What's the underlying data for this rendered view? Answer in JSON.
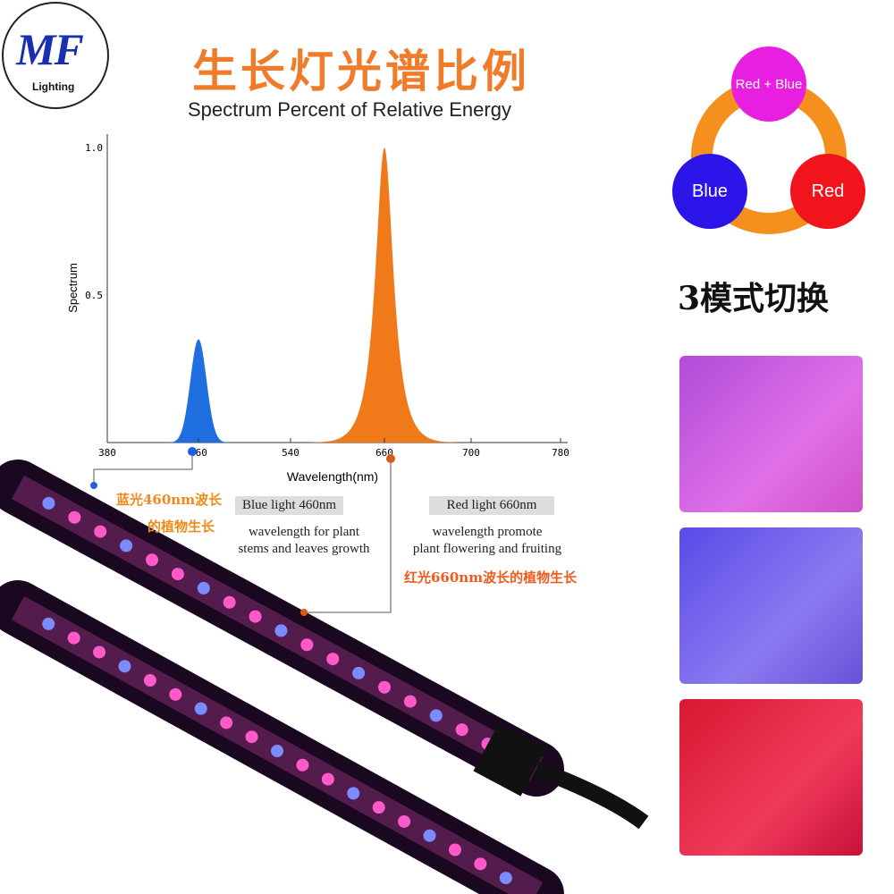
{
  "logo": {
    "letters": "MF",
    "sub": "Lighting"
  },
  "title": "生长灯光谱比例",
  "subtitle": "Spectrum  Percent of Relative Energy",
  "chart_data": {
    "type": "area",
    "title": "",
    "xlabel": "Wavelength(nm)",
    "ylabel": "Spectrum",
    "x_ticks": [
      "380",
      "460",
      "540",
      "660",
      "700",
      "780"
    ],
    "y_ticks": [
      "0.5",
      "1.0"
    ],
    "ylim": [
      0,
      1.0
    ],
    "grid": false,
    "series": [
      {
        "peak_wavelength": 460,
        "peak_value": 0.35,
        "color": "#1f6fe0"
      },
      {
        "peak_wavelength": 660,
        "peak_value": 1.0,
        "color": "#f07a1a"
      }
    ]
  },
  "annotations": {
    "blue_cn_1": "蓝光460nm波长",
    "blue_cn_2": "的植物生长",
    "blue_title": "Blue light 460nm",
    "blue_desc_1": "wavelength for plant",
    "blue_desc_2": "stems  and  leaves growth",
    "red_title": "Red light 660nm",
    "red_desc_1": "wavelength promote",
    "red_desc_2": "plant flowering and fruiting",
    "red_cn": "红光660nm波长的植物生长"
  },
  "cycle": {
    "top": "Red + Blue",
    "left": "Blue",
    "right": "Red",
    "colors": {
      "top": "#e81ee0",
      "left": "#2a14e8",
      "right": "#f2141c",
      "arrows": "#f5901e"
    }
  },
  "modes_label": "3模式切换"
}
